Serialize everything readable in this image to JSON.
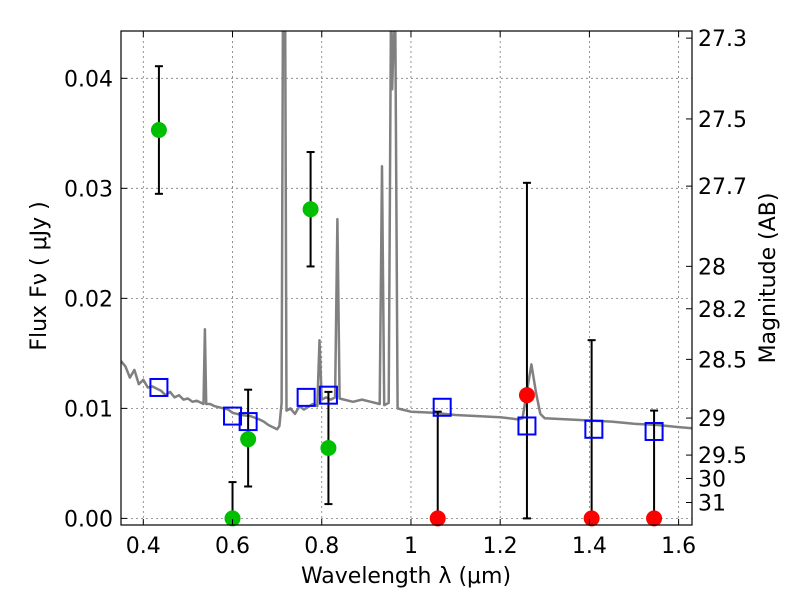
{
  "chart_data": {
    "type": "scatter",
    "xlabel": "Wavelength  λ (μm)",
    "ylabel": "Flux  Fν  ( μJy )",
    "ylabel_right": "Magnitude (AB)",
    "xlim": [
      0.35,
      1.63
    ],
    "ylim": [
      -0.0006,
      0.0443
    ],
    "grid": true,
    "x_ticks": [
      {
        "value": 0.4,
        "label": "0.4"
      },
      {
        "value": 0.6,
        "label": "0.6"
      },
      {
        "value": 0.8,
        "label": "0.8"
      },
      {
        "value": 1.0,
        "label": "1"
      },
      {
        "value": 1.2,
        "label": "1.2"
      },
      {
        "value": 1.4,
        "label": "1.4"
      },
      {
        "value": 1.6,
        "label": "1.6"
      }
    ],
    "y_ticks": [
      {
        "value": 0.0,
        "label": "0.00"
      },
      {
        "value": 0.01,
        "label": "0.01"
      },
      {
        "value": 0.02,
        "label": "0.02"
      },
      {
        "value": 0.03,
        "label": "0.03"
      },
      {
        "value": 0.04,
        "label": "0.04"
      }
    ],
    "magnitude_ticks": [
      {
        "label": "27.3"
      },
      {
        "label": "27.5"
      },
      {
        "label": "27.7"
      },
      {
        "label": "28"
      },
      {
        "label": "28.2"
      },
      {
        "label": "28.5"
      },
      {
        "label": "29"
      },
      {
        "label": "29.5"
      },
      {
        "label": "30"
      },
      {
        "label": "31"
      }
    ],
    "colors": {
      "sed": "#808080",
      "detection": "#00bf00",
      "upper_limit": "#ff0000",
      "model_phot": "#0000ff",
      "errorbar": "#000000",
      "grid": "#7a7a7a"
    },
    "series": [
      {
        "type": "line",
        "points": [
          [
            0.35,
            0.0143
          ],
          [
            0.36,
            0.0138
          ],
          [
            0.37,
            0.0128
          ],
          [
            0.38,
            0.0135
          ],
          [
            0.39,
            0.0122
          ],
          [
            0.4,
            0.0126
          ],
          [
            0.41,
            0.0119
          ],
          [
            0.42,
            0.012
          ],
          [
            0.43,
            0.0118
          ],
          [
            0.44,
            0.0116
          ],
          [
            0.45,
            0.0112
          ],
          [
            0.46,
            0.0115
          ],
          [
            0.47,
            0.011
          ],
          [
            0.48,
            0.0112
          ],
          [
            0.49,
            0.0108
          ],
          [
            0.5,
            0.0109
          ],
          [
            0.51,
            0.0106
          ],
          [
            0.52,
            0.0107
          ],
          [
            0.53,
            0.0105
          ],
          [
            0.535,
            0.0104
          ],
          [
            0.538,
            0.0172
          ],
          [
            0.541,
            0.0104
          ],
          [
            0.55,
            0.0104
          ],
          [
            0.56,
            0.0102
          ],
          [
            0.57,
            0.0101
          ],
          [
            0.58,
            0.01
          ],
          [
            0.59,
            0.0099
          ],
          [
            0.6,
            0.0096
          ],
          [
            0.62,
            0.0094
          ],
          [
            0.64,
            0.0093
          ],
          [
            0.66,
            0.009
          ],
          [
            0.67,
            0.0088
          ],
          [
            0.68,
            0.0085
          ],
          [
            0.69,
            0.0083
          ],
          [
            0.7,
            0.0081
          ],
          [
            0.705,
            0.0084
          ],
          [
            0.71,
            0.0105
          ],
          [
            0.713,
            0.045
          ],
          [
            0.718,
            0.045
          ],
          [
            0.721,
            0.0098
          ],
          [
            0.73,
            0.01
          ],
          [
            0.74,
            0.0095
          ],
          [
            0.75,
            0.0102
          ],
          [
            0.76,
            0.0099
          ],
          [
            0.78,
            0.0104
          ],
          [
            0.79,
            0.0102
          ],
          [
            0.795,
            0.0162
          ],
          [
            0.8,
            0.0108
          ],
          [
            0.81,
            0.011
          ],
          [
            0.82,
            0.0108
          ],
          [
            0.83,
            0.011
          ],
          [
            0.835,
            0.0272
          ],
          [
            0.84,
            0.0109
          ],
          [
            0.85,
            0.0108
          ],
          [
            0.87,
            0.0106
          ],
          [
            0.89,
            0.0108
          ],
          [
            0.91,
            0.0106
          ],
          [
            0.93,
            0.0104
          ],
          [
            0.935,
            0.032
          ],
          [
            0.94,
            0.0103
          ],
          [
            0.95,
            0.0105
          ],
          [
            0.955,
            0.045
          ],
          [
            0.958,
            0.039
          ],
          [
            0.962,
            0.045
          ],
          [
            0.965,
            0.045
          ],
          [
            0.97,
            0.01
          ],
          [
            0.98,
            0.0099
          ],
          [
            1.0,
            0.0097
          ],
          [
            1.05,
            0.0096
          ],
          [
            1.1,
            0.0094
          ],
          [
            1.15,
            0.0093
          ],
          [
            1.2,
            0.0092
          ],
          [
            1.24,
            0.009
          ],
          [
            1.25,
            0.0091
          ],
          [
            1.27,
            0.014
          ],
          [
            1.28,
            0.0115
          ],
          [
            1.29,
            0.0095
          ],
          [
            1.3,
            0.0091
          ],
          [
            1.35,
            0.009
          ],
          [
            1.4,
            0.0089
          ],
          [
            1.45,
            0.0088
          ],
          [
            1.5,
            0.0086
          ],
          [
            1.55,
            0.0085
          ],
          [
            1.6,
            0.0083
          ],
          [
            1.63,
            0.0082
          ]
        ]
      },
      {
        "type": "detections",
        "points": [
          {
            "x": 0.435,
            "y": 0.0353,
            "yerr": [
              0.0058,
              0.0058
            ]
          },
          {
            "x": 0.635,
            "y": 0.0072,
            "yerr": [
              0.0043,
              0.0045
            ]
          },
          {
            "x": 0.775,
            "y": 0.0281,
            "yerr": [
              0.0052,
              0.0052
            ]
          },
          {
            "x": 0.815,
            "y": 0.0064,
            "yerr": [
              0.0051,
              0.0051
            ]
          }
        ]
      },
      {
        "type": "upper_limits",
        "points": [
          {
            "x": 1.06,
            "y": 0.0,
            "yerr": [
              0.0,
              0.0097
            ]
          },
          {
            "x": 1.405,
            "y": 0.0,
            "yerr": [
              0.0,
              0.0162
            ]
          },
          {
            "x": 1.545,
            "y": 0.0,
            "yerr": [
              0.0,
              0.0098
            ]
          }
        ]
      },
      {
        "type": "detections",
        "points": [
          {
            "x": 0.6,
            "y": 0.0,
            "yerr": [
              0.0,
              0.0033
            ]
          }
        ]
      },
      {
        "type": "upper_limits",
        "points": [
          {
            "x": 1.26,
            "y": 0.0112,
            "yerr": [
              0.0112,
              0.0193
            ]
          }
        ]
      },
      {
        "type": "model_photometry",
        "points": [
          {
            "x": 0.435,
            "y": 0.0119
          },
          {
            "x": 0.6,
            "y": 0.0093
          },
          {
            "x": 0.635,
            "y": 0.0088
          },
          {
            "x": 0.765,
            "y": 0.011
          },
          {
            "x": 0.815,
            "y": 0.0112
          },
          {
            "x": 1.07,
            "y": 0.0101
          },
          {
            "x": 1.26,
            "y": 0.0084
          },
          {
            "x": 1.41,
            "y": 0.0081
          },
          {
            "x": 1.545,
            "y": 0.0079
          }
        ]
      }
    ]
  }
}
